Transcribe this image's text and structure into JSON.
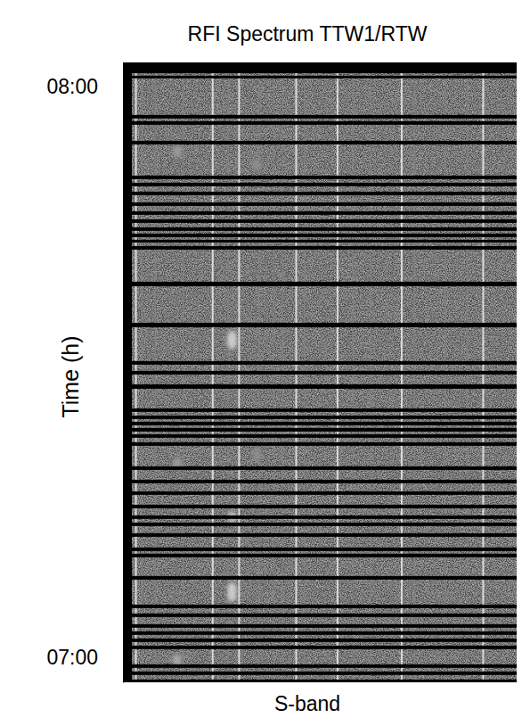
{
  "chart_data": {
    "type": "waterfall",
    "title": "RFI Spectrum TTW1/RTW",
    "x_label": "S-band",
    "y_label": "Time (h)",
    "tick_labels": "y",
    "xlim": [
      0,
      100
    ],
    "ylim": [
      6.956,
      8.042
    ],
    "yticks": [
      {
        "value": 7,
        "label": "07:00"
      },
      {
        "value": 8,
        "label": "08:00"
      }
    ],
    "zlim": [
      0,
      1
    ],
    "background": 0.27,
    "t_range": [
      6.961,
      8.023
    ],
    "gaps": [
      [
        8.0141,
        8.0188
      ],
      [
        7.9438,
        7.95
      ],
      [
        7.9328,
        7.9391
      ],
      [
        7.8984,
        7.9047
      ],
      [
        7.8375,
        7.8438
      ],
      [
        7.825,
        7.8313
      ],
      [
        7.8094,
        7.8156
      ],
      [
        7.7906,
        7.7969
      ],
      [
        7.775,
        7.7813
      ],
      [
        7.7609,
        7.7672
      ],
      [
        7.7469,
        7.7531
      ],
      [
        7.7359,
        7.7422
      ],
      [
        7.7266,
        7.7313
      ],
      [
        7.7141,
        7.7203
      ],
      [
        7.65,
        7.6578
      ],
      [
        7.5781,
        7.5859
      ],
      [
        7.5125,
        7.5188
      ],
      [
        7.4953,
        7.5016
      ],
      [
        7.4703,
        7.4781
      ],
      [
        7.4297,
        7.4359
      ],
      [
        7.4172,
        7.4234
      ],
      [
        7.4063,
        7.4125
      ],
      [
        7.3953,
        7.4016
      ],
      [
        7.3844,
        7.3906
      ],
      [
        7.3703,
        7.3766
      ],
      [
        7.3281,
        7.3344
      ],
      [
        7.3047,
        7.3109
      ],
      [
        7.2844,
        7.2906
      ],
      [
        7.2609,
        7.2672
      ],
      [
        7.2422,
        7.2484
      ],
      [
        7.2297,
        7.2359
      ],
      [
        7.2109,
        7.2172
      ],
      [
        7.1859,
        7.1922
      ],
      [
        7.175,
        7.1813
      ],
      [
        7.1359,
        7.1422
      ],
      [
        7.0859,
        7.0922
      ],
      [
        7.0703,
        7.0766
      ],
      [
        7.0516,
        7.0578
      ],
      [
        7.0391,
        7.0453
      ],
      [
        7.0266,
        7.0328
      ],
      [
        7.0141,
        7.0203
      ],
      [
        6.9813,
        6.9875
      ],
      [
        6.9688,
        6.975
      ]
    ],
    "lines": {
      "x": [
        3.3,
        4.9,
        8.3,
        15.4,
        22.8,
        26.8,
        29.5,
        34.6,
        38.4,
        40.6,
        44.0,
        46.2,
        54.5,
        58.5,
        62.9,
        70.8,
        74.1,
        81.9,
        87.5,
        91.5
      ],
      "intensity": [
        0.85,
        0.5,
        0.5,
        0.5,
        0.85,
        0.5,
        0.85,
        0.5,
        0.5,
        0.5,
        0.85,
        0.5,
        0.85,
        0.5,
        0.5,
        0.85,
        0.5,
        0.5,
        0.5,
        0.85
      ]
    },
    "blobs": {
      "x": [
        27.7,
        27.7,
        27.7,
        27.7,
        27.7,
        13.8,
        13.8,
        13.8,
        33.9,
        33.9
      ],
      "t": [
        7.5609,
        7.55,
        7.2453,
        7.1203,
        7.1078,
        7.886,
        7.339,
        6.995,
        7.8625,
        7.3547
      ],
      "intensity": [
        0.8,
        0.8,
        0.75,
        0.8,
        0.8,
        0.6,
        0.6,
        0.65,
        0.55,
        0.55
      ]
    }
  }
}
